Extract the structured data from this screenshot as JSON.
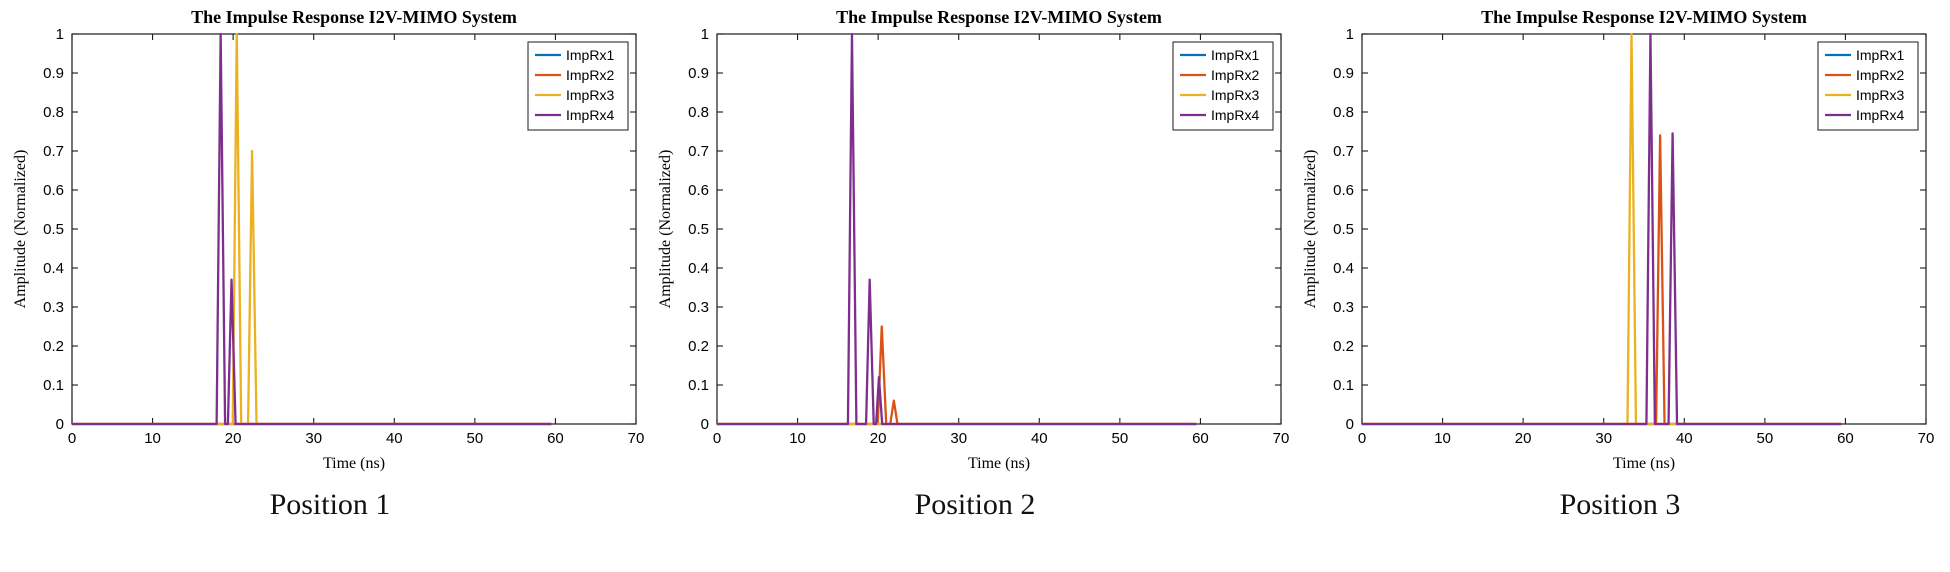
{
  "figure": {
    "background": "#ffffff",
    "axes_color": "#1a1a1a",
    "text_color": "#000000"
  },
  "chart_data": [
    {
      "type": "line",
      "title": "The Impulse Response I2V-MIMO System",
      "xlabel": "Time (ns)",
      "ylabel": "Amplitude (Normalized)",
      "caption": "Position 1",
      "xlim": [
        0,
        70
      ],
      "ylim": [
        0,
        1
      ],
      "xticks": [
        0,
        10,
        20,
        30,
        40,
        50,
        60,
        70
      ],
      "yticks": [
        0,
        0.1,
        0.2,
        0.3,
        0.4,
        0.5,
        0.6,
        0.7,
        0.8,
        0.9,
        1
      ],
      "legend_position": "top-right",
      "grid": false,
      "colors": [
        "#0072BD",
        "#D95319",
        "#EDB120",
        "#7E2F8E"
      ],
      "series": [
        {
          "name": "ImpRx1",
          "points": [
            [
              0,
              0
            ],
            [
              59.5,
              0
            ]
          ]
        },
        {
          "name": "ImpRx2",
          "points": [
            [
              0,
              0
            ],
            [
              59.5,
              0
            ]
          ]
        },
        {
          "name": "ImpRx3",
          "points": [
            [
              0,
              0
            ],
            [
              19.95,
              0
            ],
            [
              20.45,
              1.0
            ],
            [
              21.0,
              0
            ],
            [
              21.85,
              0
            ],
            [
              22.35,
              0.7
            ],
            [
              22.9,
              0
            ],
            [
              59.5,
              0
            ]
          ]
        },
        {
          "name": "ImpRx4",
          "points": [
            [
              0,
              0
            ],
            [
              17.95,
              0
            ],
            [
              18.45,
              1.0
            ],
            [
              19.0,
              0
            ],
            [
              19.35,
              0
            ],
            [
              19.8,
              0.37
            ],
            [
              20.3,
              0
            ],
            [
              59.5,
              0
            ]
          ]
        }
      ]
    },
    {
      "type": "line",
      "title": "The Impulse Response I2V-MIMO System",
      "xlabel": "Time (ns)",
      "ylabel": "Amplitude (Normalized)",
      "caption": "Position 2",
      "xlim": [
        0,
        70
      ],
      "ylim": [
        0,
        1
      ],
      "xticks": [
        0,
        10,
        20,
        30,
        40,
        50,
        60,
        70
      ],
      "yticks": [
        0,
        0.1,
        0.2,
        0.3,
        0.4,
        0.5,
        0.6,
        0.7,
        0.8,
        0.9,
        1
      ],
      "legend_position": "top-right",
      "grid": false,
      "colors": [
        "#0072BD",
        "#D95319",
        "#EDB120",
        "#7E2F8E"
      ],
      "series": [
        {
          "name": "ImpRx1",
          "points": [
            [
              0,
              0
            ],
            [
              59.5,
              0
            ]
          ]
        },
        {
          "name": "ImpRx2",
          "points": [
            [
              0,
              0
            ],
            [
              19.95,
              0
            ],
            [
              20.45,
              0.25
            ],
            [
              21.0,
              0
            ],
            [
              21.5,
              0
            ],
            [
              21.95,
              0.06
            ],
            [
              22.4,
              0
            ],
            [
              59.5,
              0
            ]
          ]
        },
        {
          "name": "ImpRx3",
          "points": [
            [
              0,
              0
            ],
            [
              59.5,
              0
            ]
          ]
        },
        {
          "name": "ImpRx4",
          "points": [
            [
              0,
              0
            ],
            [
              16.25,
              0
            ],
            [
              16.75,
              1.0
            ],
            [
              17.3,
              0
            ],
            [
              18.5,
              0
            ],
            [
              18.95,
              0.37
            ],
            [
              19.45,
              0
            ],
            [
              19.75,
              0
            ],
            [
              20.1,
              0.12
            ],
            [
              20.5,
              0
            ],
            [
              59.5,
              0
            ]
          ]
        }
      ]
    },
    {
      "type": "line",
      "title": "The Impulse Response I2V-MIMO System",
      "xlabel": "Time (ns)",
      "ylabel": "Amplitude (Normalized)",
      "caption": "Position 3",
      "xlim": [
        0,
        70
      ],
      "ylim": [
        0,
        1
      ],
      "xticks": [
        0,
        10,
        20,
        30,
        40,
        50,
        60,
        70
      ],
      "yticks": [
        0,
        0.1,
        0.2,
        0.3,
        0.4,
        0.5,
        0.6,
        0.7,
        0.8,
        0.9,
        1
      ],
      "legend_position": "top-right",
      "grid": false,
      "colors": [
        "#0072BD",
        "#D95319",
        "#EDB120",
        "#7E2F8E"
      ],
      "series": [
        {
          "name": "ImpRx1",
          "points": [
            [
              0,
              0
            ],
            [
              59.5,
              0
            ]
          ]
        },
        {
          "name": "ImpRx2",
          "points": [
            [
              0,
              0
            ],
            [
              36.5,
              0
            ],
            [
              37.0,
              0.74
            ],
            [
              37.55,
              0
            ],
            [
              59.5,
              0
            ]
          ]
        },
        {
          "name": "ImpRx3",
          "points": [
            [
              0,
              0
            ],
            [
              32.95,
              0
            ],
            [
              33.45,
              1.0
            ],
            [
              34.0,
              0
            ],
            [
              59.5,
              0
            ]
          ]
        },
        {
          "name": "ImpRx4",
          "points": [
            [
              0,
              0
            ],
            [
              35.3,
              0
            ],
            [
              35.8,
              1.0
            ],
            [
              36.35,
              0
            ],
            [
              38.05,
              0
            ],
            [
              38.55,
              0.745
            ],
            [
              39.1,
              0
            ],
            [
              59.5,
              0
            ]
          ]
        }
      ]
    }
  ]
}
